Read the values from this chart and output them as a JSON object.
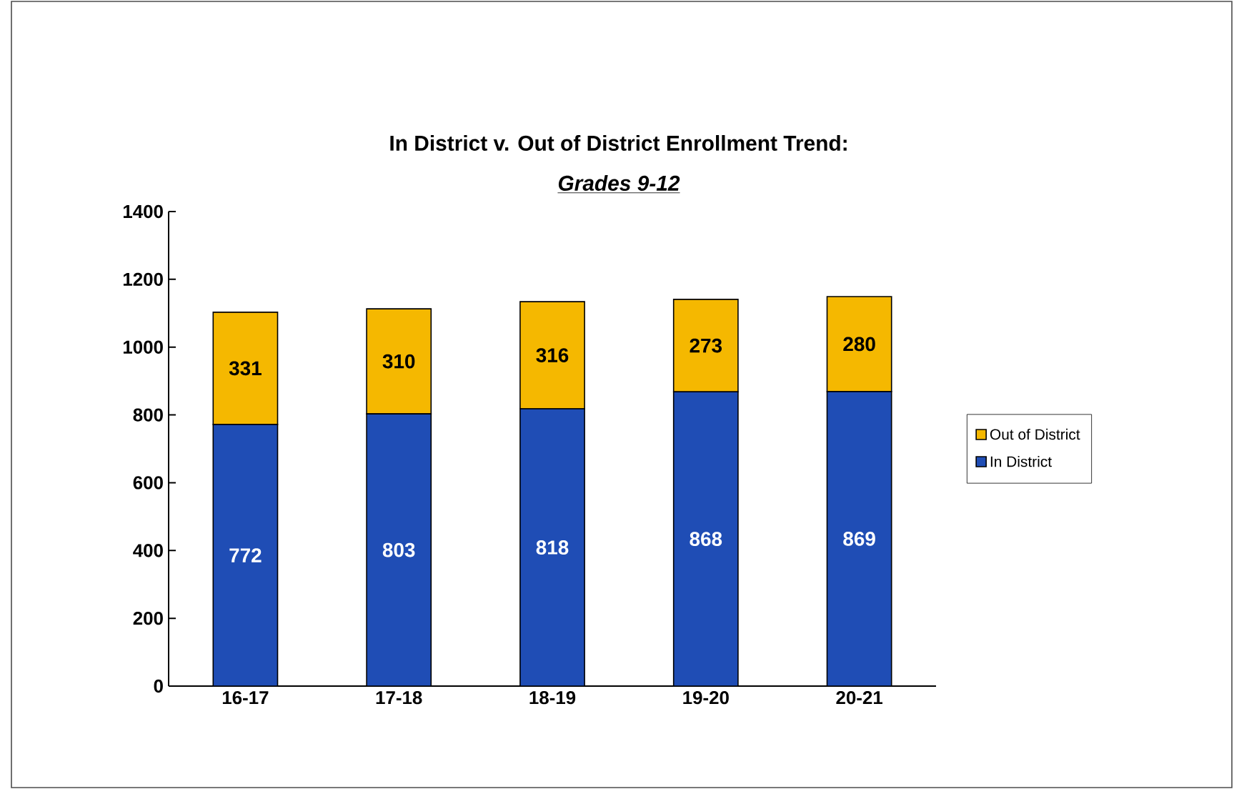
{
  "chart_data": {
    "type": "bar",
    "title": "In District v. Out of District Enrollment Trend:",
    "subtitle": "Grades 9-12",
    "categories": [
      "16-17",
      "17-18",
      "18-19",
      "19-20",
      "20-21"
    ],
    "series": [
      {
        "name": "In District",
        "color": "#1f4db5",
        "values": [
          772,
          803,
          818,
          868,
          869
        ]
      },
      {
        "name": "Out of District",
        "color": "#f5b800",
        "values": [
          331,
          310,
          316,
          273,
          280
        ]
      }
    ],
    "stacked": true,
    "data_labels": true,
    "legend": "right",
    "grid": false,
    "ylim": [
      0,
      1400
    ],
    "yticks": [
      0,
      200,
      400,
      600,
      800,
      1000,
      1200,
      1400
    ]
  }
}
